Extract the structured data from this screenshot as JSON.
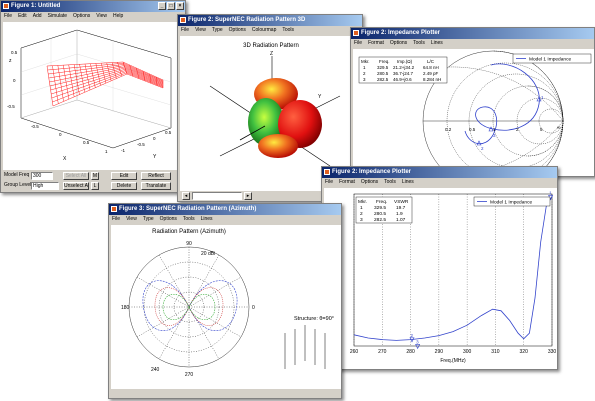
{
  "windows": {
    "fig1": {
      "title": "Figure 1: Untitled",
      "menu": [
        "File",
        "Edit",
        "Add",
        "Simulate",
        "Options",
        "View",
        "Help"
      ],
      "axes": {
        "z_label": "z",
        "x_label": "X",
        "y_label": "Y",
        "z_ticks": [
          "0.5",
          "0",
          "-0.5"
        ],
        "x_ticks": [
          "-0.5",
          "0",
          "0.5",
          "1"
        ],
        "y_ticks": [
          "-1",
          "-0.5",
          "0",
          "0.5"
        ]
      },
      "controls": {
        "model_freq_label": "Model Freq",
        "model_freq_value": "300",
        "select_all": "Select All",
        "m_button": "M",
        "group_level_label": "Group Level",
        "group_level_value": "High",
        "unselect_all": "Unselect All",
        "l_button": "L",
        "edit": "Edit",
        "reflect": "Reflect",
        "delete": "Delete",
        "translate": "Translate"
      }
    },
    "fig2_3d": {
      "title": "Figure 2: SuperNEC Radiation Pattern 3D",
      "menu": [
        "File",
        "View",
        "Type",
        "Options",
        "Colourmap",
        "Tools"
      ],
      "plot_title": "3D Radiation Pattern",
      "axis_labels": {
        "z": "Z",
        "y": "Y"
      }
    },
    "fig2_smith": {
      "title": "Figure 2: Impedance Plotter",
      "menu": [
        "File",
        "Format",
        "Options",
        "Tools",
        "Lines"
      ],
      "table_headers": [
        "Mkr.",
        "Freq.",
        "Imp.(Ω)",
        "L/C"
      ],
      "table_rows": [
        [
          "1",
          "329.5",
          "21.2+j34.2",
          "64.8 nH"
        ],
        [
          "2",
          "280.5",
          "36.7-j24.7",
          "2.49 pF"
        ],
        [
          "3",
          "282.5",
          "46.9+j0.6",
          "8.284 nH"
        ]
      ],
      "legend": "Model 1 Impedance",
      "real_ticks": [
        "0.2",
        "0.5",
        "1",
        "2",
        "5",
        "∞"
      ],
      "markers": [
        "1",
        "2",
        "3"
      ]
    },
    "fig2_vswr": {
      "title": "Figure 2: Impedance Plotter",
      "menu": [
        "File",
        "Format",
        "Options",
        "Tools",
        "Lines"
      ],
      "table_headers": [
        "Mkr.",
        "Freq.",
        "VSWR"
      ],
      "table_rows": [
        [
          "1",
          "329.5",
          "19.7"
        ],
        [
          "2",
          "280.5",
          "1.9"
        ],
        [
          "3",
          "282.5",
          "1.07"
        ]
      ],
      "legend": "Model 1 Impedance",
      "xlabel": "Freq.(MHz)",
      "markers": [
        "1",
        "2",
        "3"
      ]
    },
    "fig3_azimuth": {
      "title": "Figure 3: SuperNEC Radiation Pattern (Azimuth)",
      "menu": [
        "File",
        "View",
        "Type",
        "Options",
        "Tools",
        "Lines"
      ],
      "plot_title": "Radiation Pattern (Azimuth)",
      "angle_labels": {
        "top": "90",
        "left": "180",
        "bottom": "270",
        "bottom_left": "240",
        "right": "0"
      },
      "radial_label": "20 dBi",
      "structure_label": "Structure: θ=90°"
    }
  },
  "chart_data": [
    {
      "type": "line",
      "title": "",
      "xlabel": "Freq.(MHz)",
      "ylabel": "",
      "x_ticks": [
        260,
        270,
        280,
        290,
        300,
        310,
        320,
        330
      ],
      "xlim": [
        260,
        330
      ],
      "ylim": [
        1,
        20
      ],
      "series": [
        {
          "name": "Model 1 Impedance",
          "x": [
            260,
            265,
            270,
            275,
            280,
            285,
            290,
            295,
            300,
            305,
            309,
            312,
            315,
            318,
            320,
            322,
            324,
            326,
            328,
            330
          ],
          "y": [
            2.4,
            2.0,
            1.8,
            1.7,
            1.8,
            2.0,
            2.3,
            2.8,
            3.6,
            4.8,
            5.6,
            5.4,
            4.2,
            2.6,
            1.9,
            2.6,
            7.0,
            14.0,
            18.5,
            19.7
          ]
        }
      ],
      "markers": [
        {
          "label": "1",
          "x": 329.5,
          "y": 19.7
        },
        {
          "label": "2",
          "x": 280.5,
          "y": 1.9
        },
        {
          "label": "3",
          "x": 282.5,
          "y": 1.07
        }
      ],
      "grid": true,
      "legend": "top-right"
    }
  ],
  "colors": {
    "title_active": "#0a246a",
    "window_bg": "#d4d0c8",
    "curve": "#3344cc",
    "structure": "#ff0000"
  }
}
